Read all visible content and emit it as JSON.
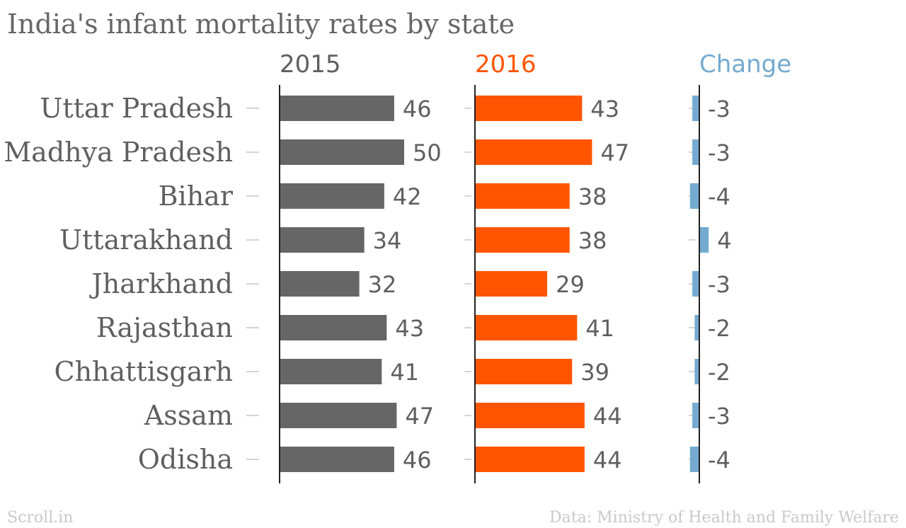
{
  "chart_data": {
    "type": "bar",
    "title": "India's infant mortality rates by state",
    "categories": [
      "Uttar Pradesh",
      "Madhya Pradesh",
      "Bihar",
      "Uttarakhand",
      "Jharkhand",
      "Rajasthan",
      "Chhattisgarh",
      "Assam",
      "Odisha"
    ],
    "series": [
      {
        "name": "2015",
        "values": [
          46,
          50,
          42,
          34,
          32,
          43,
          41,
          47,
          46
        ],
        "color": "#666666"
      },
      {
        "name": "2016",
        "values": [
          43,
          47,
          38,
          38,
          29,
          41,
          39,
          44,
          44
        ],
        "color": "#ff5500"
      },
      {
        "name": "Change",
        "values": [
          -3,
          -3,
          -4,
          4,
          -3,
          -2,
          -2,
          -3,
          -4
        ],
        "color": "#74aad0"
      }
    ],
    "orientation": "horizontal",
    "legend": "column headers"
  },
  "footer": {
    "source_left": "Scroll.in",
    "source_right": "Data: Ministry of Health and Family Welfare"
  }
}
